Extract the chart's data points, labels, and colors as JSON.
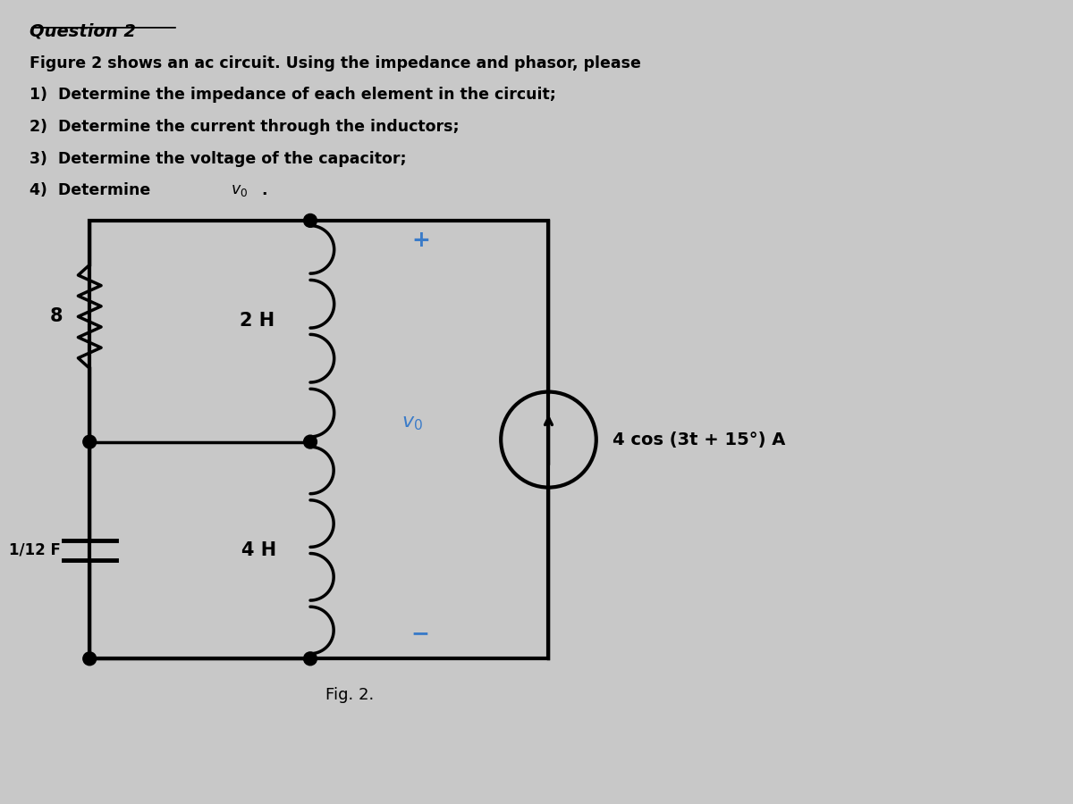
{
  "title_text": "Question 2",
  "description_lines": [
    "Figure 2 shows an ac circuit. Using the impedance and phasor, please",
    "1)  Determine the impedance of each element in the circuit;",
    "2)  Determine the current through the inductors;",
    "3)  Determine the voltage of the capacitor;"
  ],
  "fig_label": "Fig. 2.",
  "current_source_label": "4 cos (3t + 15°) A",
  "resistor_label": "8",
  "inductor1_label": "2 H",
  "inductor2_label": "4 H",
  "capacitor_label": "1/12 F",
  "vo_label": "$v_0$",
  "bg_color": "#c8c8c8",
  "line_color": "#000000",
  "blue_color": "#3a7bc8",
  "line_width": 2.5
}
